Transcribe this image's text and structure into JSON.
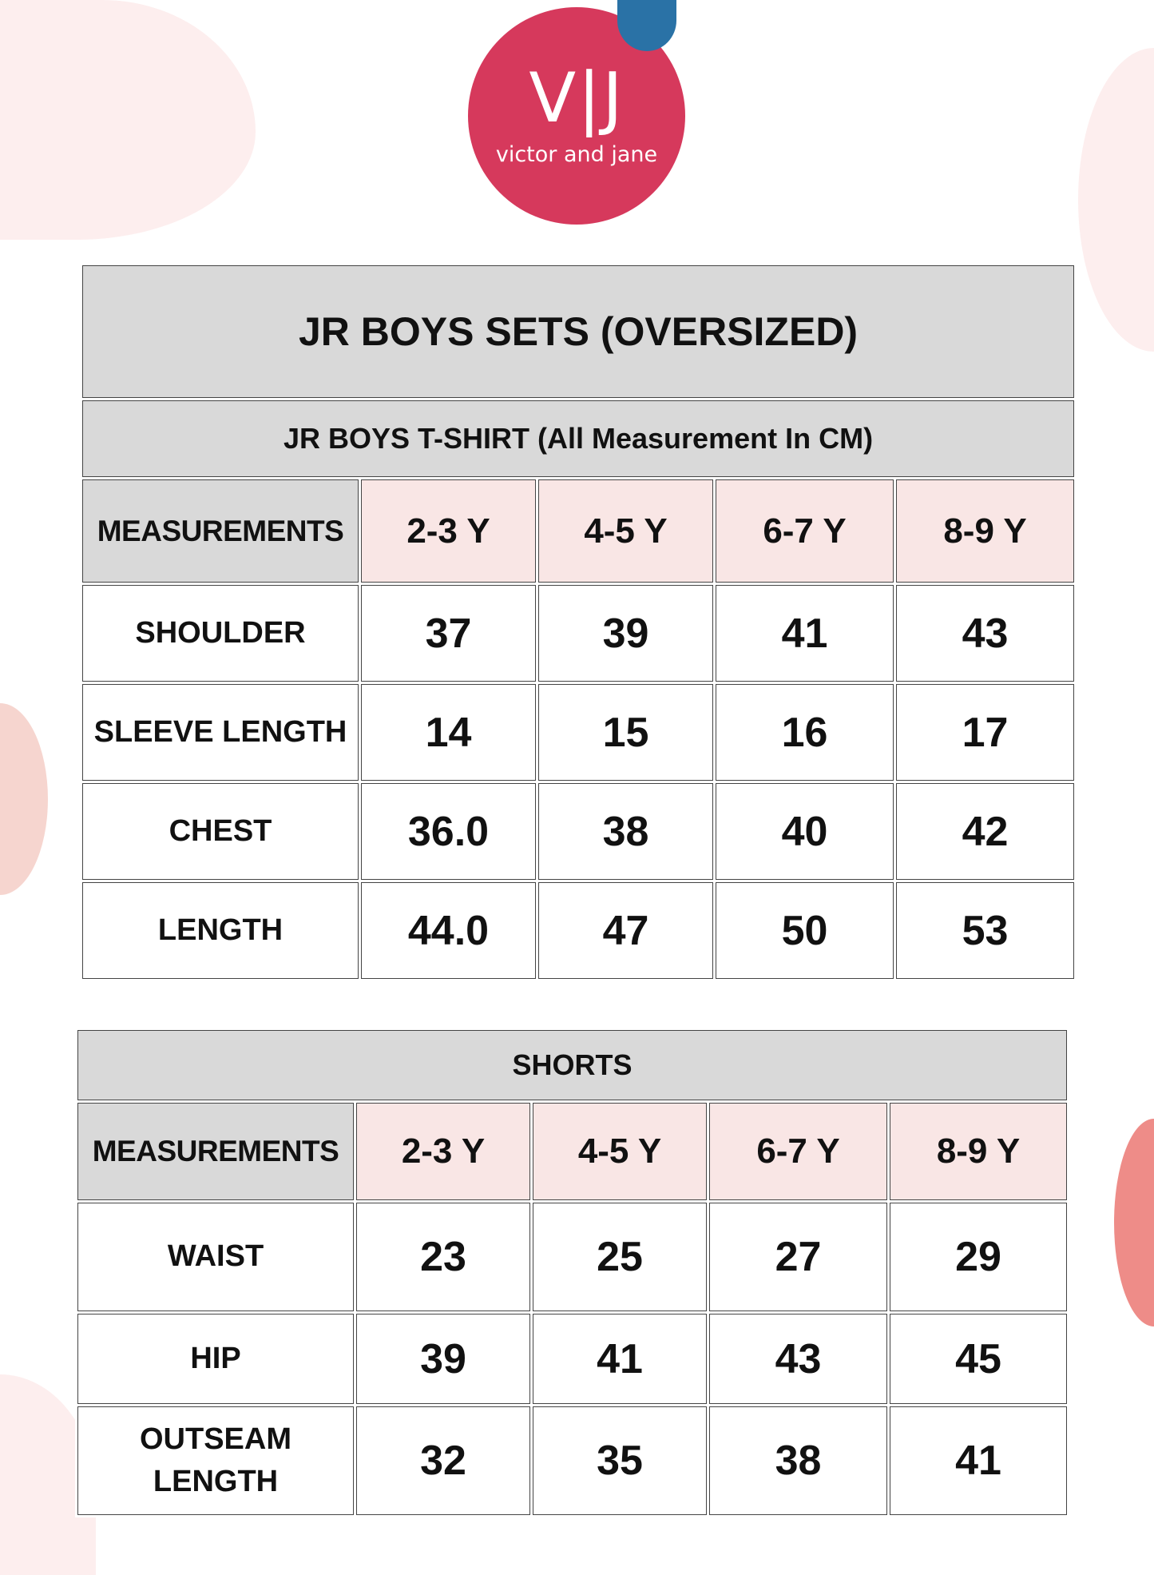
{
  "brand": {
    "logo_mark": "V|J",
    "logo_text": "victor and jane",
    "colors": {
      "logo_circle": "#d6395c",
      "logo_dot": "#2a72a6",
      "header_gray": "#d9d9d9",
      "size_header_pink": "#f9e6e5"
    }
  },
  "tshirt_table": {
    "title": "JR BOYS SETS (OVERSIZED)",
    "subtitle": "JR BOYS T-SHIRT (All Measurement In CM)",
    "header": [
      "MEASUREMENTS",
      "2-3 Y",
      "4-5 Y",
      "6-7 Y",
      "8-9 Y"
    ],
    "rows": [
      {
        "label": "SHOULDER",
        "values": [
          "37",
          "39",
          "41",
          "43"
        ]
      },
      {
        "label": "SLEEVE LENGTH",
        "values": [
          "14",
          "15",
          "16",
          "17"
        ]
      },
      {
        "label": "CHEST",
        "values": [
          "36.0",
          "38",
          "40",
          "42"
        ]
      },
      {
        "label": "LENGTH",
        "values": [
          "44.0",
          "47",
          "50",
          "53"
        ]
      }
    ]
  },
  "shorts_table": {
    "title": "SHORTS",
    "header": [
      "MEASUREMENTS",
      "2-3 Y",
      "4-5 Y",
      "6-7 Y",
      "8-9 Y"
    ],
    "rows": [
      {
        "label": "WAIST",
        "values": [
          "23",
          "25",
          "27",
          "29"
        ]
      },
      {
        "label": "HIP",
        "values": [
          "39",
          "41",
          "43",
          "45"
        ]
      },
      {
        "label": "OUTSEAM LENGTH",
        "values": [
          "32",
          "35",
          "38",
          "41"
        ]
      }
    ]
  }
}
